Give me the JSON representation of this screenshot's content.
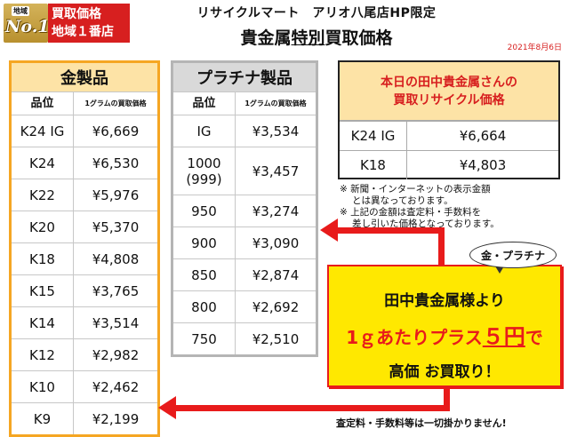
{
  "badge": {
    "area_label": "地域",
    "rank": "No.1",
    "line1": "買取価格",
    "line2": "地域１番店"
  },
  "header": {
    "subtitle": "リサイクルマート　アリオ八尾店HP限定",
    "title_pre": "貴金属",
    "title_emph": "特別",
    "title_post": "買取価格",
    "date": "2021年8月6日"
  },
  "gold": {
    "title": "金製品",
    "col1": "品位",
    "col2": "1グラムの買取価格",
    "rows": [
      {
        "grade": "K24 IG",
        "price": "¥6,669"
      },
      {
        "grade": "K24",
        "price": "¥6,530"
      },
      {
        "grade": "K22",
        "price": "¥5,976"
      },
      {
        "grade": "K20",
        "price": "¥5,370"
      },
      {
        "grade": "K18",
        "price": "¥4,808"
      },
      {
        "grade": "K15",
        "price": "¥3,765"
      },
      {
        "grade": "K14",
        "price": "¥3,514"
      },
      {
        "grade": "K12",
        "price": "¥2,982"
      },
      {
        "grade": "K10",
        "price": "¥2,462"
      },
      {
        "grade": "K9",
        "price": "¥2,199"
      }
    ]
  },
  "platinum": {
    "title": "プラチナ製品",
    "col1": "品位",
    "col2": "1グラムの買取価格",
    "rows": [
      {
        "grade": "IG",
        "price": "¥3,534"
      },
      {
        "grade": "1000\n(999)",
        "price": "¥3,457"
      },
      {
        "grade": "950",
        "price": "¥3,274"
      },
      {
        "grade": "900",
        "price": "¥3,090"
      },
      {
        "grade": "850",
        "price": "¥2,874"
      },
      {
        "grade": "800",
        "price": "¥2,692"
      },
      {
        "grade": "750",
        "price": "¥2,510"
      }
    ]
  },
  "tanaka": {
    "title_line1": "本日の田中貴金属さんの",
    "title_line2": "買取リサイクル価格",
    "rows": [
      {
        "grade": "K24 IG",
        "price": "¥6,664"
      },
      {
        "grade": "K18",
        "price": "¥4,803"
      }
    ]
  },
  "notes": {
    "n1a": "※ 新聞・インターネットの表示金額",
    "n1b": "とは異なっております。",
    "n2a": "※ 上記の金額は査定料・手数料を",
    "n2b": "差し引いた価格となっております。"
  },
  "promo": {
    "bubble": "金・プラチナ",
    "line1": "田中貴金属様より",
    "line2_pre": "1ｇあたりプラス",
    "line2_big": "５円",
    "line2_post": "で",
    "line3": "高価 お買取り！"
  },
  "footer": "査定料・手数料等は一切掛かりません!",
  "colors": {
    "gold_border": "#f5a623",
    "gold_header": "#fde3a6",
    "plat_border": "#b5b5b5",
    "accent_red": "#e81b1b",
    "promo_yellow": "#ffe800"
  }
}
